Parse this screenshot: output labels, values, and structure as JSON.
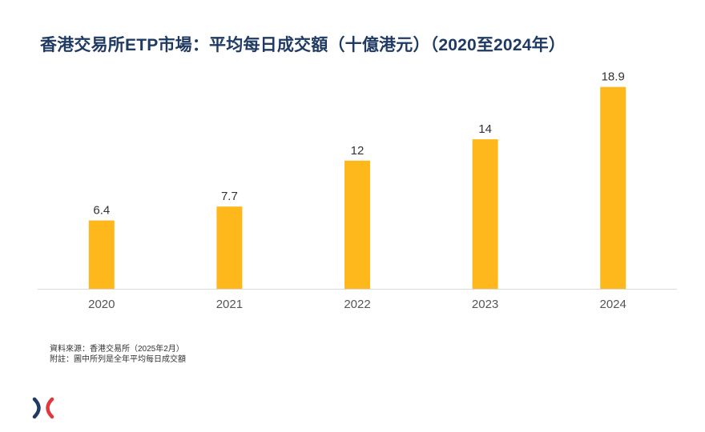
{
  "chart_data": {
    "type": "bar",
    "title": "香港交易所ETP市場：平均每日成交額（十億港元）（2020至2024年）",
    "categories": [
      "2020",
      "2021",
      "2022",
      "2023",
      "2024"
    ],
    "values": [
      6.4,
      7.7,
      12,
      14,
      18.9
    ],
    "value_labels": [
      "6.4",
      "7.7",
      "12",
      "14",
      "18.9"
    ],
    "xlabel": "",
    "ylabel": "",
    "ylim": [
      0,
      20
    ],
    "grid": false,
    "legend": "none",
    "bar_color": "#ffb81c",
    "axis_color": "#d9d9d9",
    "label_color": "#333333",
    "tick_color": "#555555"
  },
  "notes": {
    "source": "資料來源：香港交易所（2025年2月）",
    "remark": "附註：圖中所列是全年平均每日成交額"
  },
  "brand": {
    "logo_icon": "hkex-logo-icon",
    "primary_color": "#1f3a63",
    "accent_color": "#e0383e"
  }
}
